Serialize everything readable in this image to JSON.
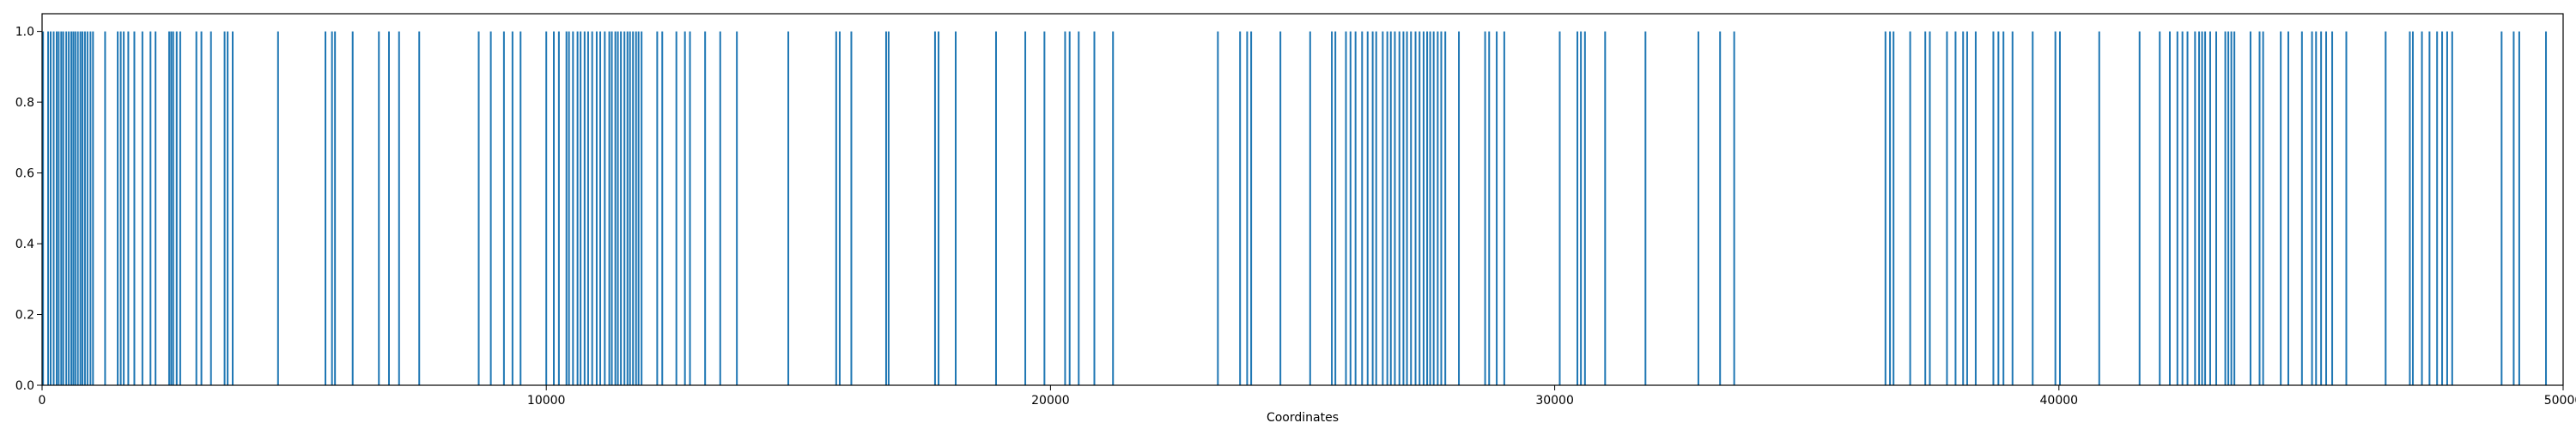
{
  "chart_data": {
    "type": "bar",
    "title": "",
    "xlabel": "Coordinates",
    "ylabel": "",
    "xlim": [
      0,
      50000
    ],
    "ylim": [
      0,
      1.05
    ],
    "grid": false,
    "series_color": "#1f77b4",
    "x_ticks": [
      0,
      10000,
      20000,
      30000,
      40000,
      50000
    ],
    "y_ticks": [
      0.0,
      0.2,
      0.4,
      0.6,
      0.8,
      1.0
    ],
    "x_tick_labels": [
      "0",
      "10000",
      "20000",
      "30000",
      "40000",
      "50000"
    ],
    "y_tick_labels": [
      "0.0",
      "0.2",
      "0.4",
      "0.6",
      "0.8",
      "1.0"
    ],
    "value": 1.0,
    "positions": [
      20,
      120,
      170,
      230,
      290,
      330,
      380,
      420,
      480,
      530,
      580,
      620,
      660,
      710,
      760,
      800,
      850,
      900,
      960,
      1010,
      1250,
      1500,
      1560,
      1620,
      1710,
      1830,
      1990,
      2150,
      2250,
      2520,
      2560,
      2600,
      2670,
      2740,
      3060,
      3160,
      3350,
      3620,
      3680,
      3780,
      4680,
      5620,
      5750,
      5810,
      6160,
      6680,
      6880,
      7080,
      7480,
      8660,
      8900,
      9160,
      9330,
      9490,
      10000,
      10150,
      10250,
      10400,
      10450,
      10530,
      10620,
      10680,
      10760,
      10830,
      10910,
      11000,
      11070,
      11160,
      11250,
      11300,
      11370,
      11420,
      11480,
      11550,
      11610,
      11660,
      11720,
      11780,
      11830,
      11890,
      12200,
      12300,
      12580,
      12750,
      12850,
      13150,
      13450,
      13780,
      14800,
      15750,
      15820,
      16050,
      16740,
      16790,
      17710,
      17780,
      18120,
      18920,
      19500,
      19880,
      20290,
      20380,
      20560,
      20870,
      21240,
      23320,
      23760,
      23900,
      23980,
      24560,
      25150,
      25580,
      25650,
      25860,
      25950,
      26050,
      26180,
      26290,
      26390,
      26460,
      26590,
      26680,
      26750,
      26830,
      26920,
      27000,
      27070,
      27150,
      27240,
      27320,
      27400,
      27470,
      27530,
      27600,
      27680,
      27750,
      27830,
      28100,
      28620,
      28700,
      28850,
      29000,
      30100,
      30450,
      30520,
      30600,
      31000,
      31800,
      32850,
      33280,
      33560,
      36560,
      36650,
      36720,
      37050,
      37350,
      37440,
      37780,
      37950,
      38100,
      38180,
      38350,
      38700,
      38800,
      38900,
      39080,
      39480,
      39930,
      40020,
      40800,
      41600,
      42000,
      42200,
      42350,
      42450,
      42550,
      42700,
      42780,
      42840,
      42900,
      43000,
      43120,
      43300,
      43360,
      43420,
      43480,
      43800,
      43980,
      44050,
      44400,
      44550,
      44820,
      45020,
      45100,
      45200,
      45300,
      45420,
      45700,
      46480,
      46960,
      47020,
      47200,
      47350,
      47500,
      47600,
      47700,
      47800,
      48780,
      49020,
      49130,
      49660
    ]
  }
}
